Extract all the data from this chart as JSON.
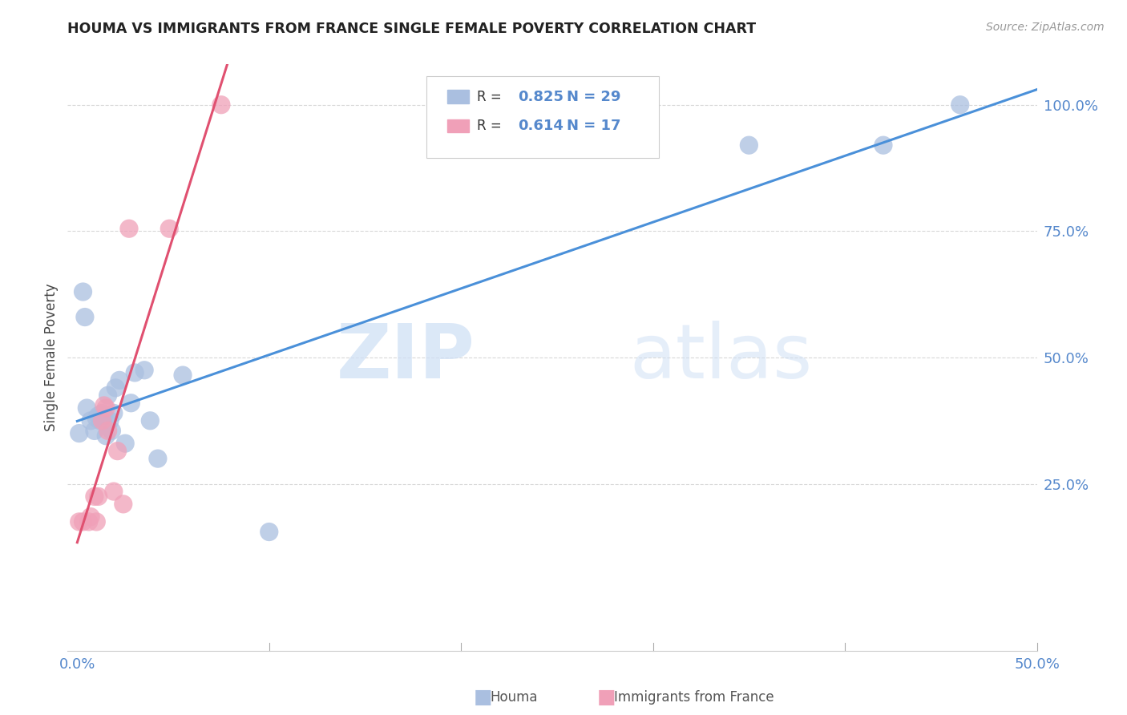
{
  "title": "HOUMA VS IMMIGRANTS FROM FRANCE SINGLE FEMALE POVERTY CORRELATION CHART",
  "source": "Source: ZipAtlas.com",
  "ylabel": "Single Female Poverty",
  "xlim": [
    -0.005,
    0.5
  ],
  "ylim": [
    -0.08,
    1.08
  ],
  "houma_R": 0.825,
  "houma_N": 29,
  "france_R": 0.614,
  "france_N": 17,
  "houma_color": "#aabfe0",
  "france_color": "#f0a0b8",
  "houma_line_color": "#4a90d9",
  "france_line_color": "#e05070",
  "houma_points_x": [
    0.001,
    0.003,
    0.004,
    0.005,
    0.007,
    0.009,
    0.01,
    0.011,
    0.012,
    0.013,
    0.014,
    0.015,
    0.016,
    0.017,
    0.018,
    0.019,
    0.02,
    0.022,
    0.025,
    0.028,
    0.03,
    0.035,
    0.038,
    0.042,
    0.055,
    0.1,
    0.35,
    0.42,
    0.46
  ],
  "houma_points_y": [
    0.35,
    0.63,
    0.58,
    0.4,
    0.375,
    0.355,
    0.38,
    0.385,
    0.375,
    0.39,
    0.385,
    0.345,
    0.425,
    0.375,
    0.355,
    0.39,
    0.44,
    0.455,
    0.33,
    0.41,
    0.47,
    0.475,
    0.375,
    0.3,
    0.465,
    0.155,
    0.92,
    0.92,
    1.0
  ],
  "france_points_x": [
    0.001,
    0.003,
    0.006,
    0.007,
    0.009,
    0.01,
    0.011,
    0.013,
    0.014,
    0.015,
    0.016,
    0.019,
    0.021,
    0.024,
    0.027,
    0.048,
    0.075
  ],
  "france_points_y": [
    0.175,
    0.175,
    0.175,
    0.185,
    0.225,
    0.175,
    0.225,
    0.375,
    0.405,
    0.4,
    0.355,
    0.235,
    0.315,
    0.21,
    0.755,
    0.755,
    1.0
  ],
  "watermark_zip": "ZIP",
  "watermark_atlas": "atlas",
  "background_color": "#ffffff",
  "grid_color": "#d8d8d8",
  "tick_color": "#5588cc",
  "ytick_positions": [
    0.25,
    0.5,
    0.75,
    1.0
  ],
  "ytick_labels": [
    "25.0%",
    "50.0%",
    "75.0%",
    "100.0%"
  ],
  "xtick_positions": [
    0.0,
    0.5
  ],
  "xtick_labels": [
    "0.0%",
    "50.0%"
  ]
}
